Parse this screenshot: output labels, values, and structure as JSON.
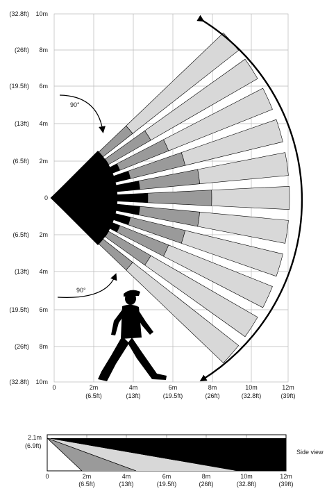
{
  "top_view": {
    "y_axis": {
      "feet_labels": [
        "(32.8ft)",
        "(26ft)",
        "(19.5ft)",
        "(13ft)",
        "(6.5ft)",
        "",
        "(6.5ft)",
        "(13ft)",
        "(19.5ft)",
        "(26ft)",
        "(32.8ft)"
      ],
      "meter_labels": [
        "10m",
        "8m",
        "6m",
        "4m",
        "2m",
        "0",
        "2m",
        "4m",
        "6m",
        "8m",
        "10m"
      ]
    },
    "x_axis": {
      "meter_labels": [
        "0",
        "2m",
        "4m",
        "6m",
        "8m",
        "10m",
        "12m"
      ],
      "feet_labels": [
        "",
        "(6.5ft)",
        "(13ft)",
        "(19.5ft)",
        "(26ft)",
        "(32.8ft)",
        "(39ft)"
      ]
    },
    "angle_labels": [
      "90°",
      "90°"
    ],
    "coverage": {
      "max_range_m": 12,
      "half_angle_deg": 45,
      "beam_count": 11,
      "zone_colors": {
        "near": "#000000",
        "mid": "#9a9a9a",
        "far": "#d8d8d8"
      }
    }
  },
  "side_view": {
    "label": "Side view",
    "height_labels": [
      "2.1m",
      "(6.9ft)"
    ],
    "x_axis": {
      "meter_labels": [
        "0",
        "2m",
        "4m",
        "6m",
        "8m",
        "10m",
        "12m"
      ],
      "feet_labels": [
        "",
        "(6.5ft)",
        "(13ft)",
        "(19.5ft)",
        "(26ft)",
        "(32.8ft)",
        "(39ft)"
      ]
    },
    "max_range_m": 12
  }
}
